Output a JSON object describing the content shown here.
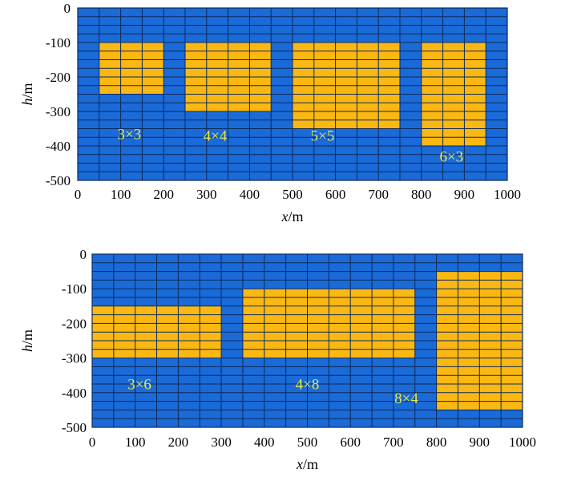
{
  "colors": {
    "background_cell": "#1a6ad8",
    "block_cell": "#fbb812",
    "grid_line": "#0c2a5a",
    "block_label": "#e8e84a"
  },
  "chart_data": [
    {
      "type": "heatmap",
      "xlabel_var": "x",
      "xlabel_unit": "/m",
      "ylabel_var": "h",
      "ylabel_unit": "/m",
      "xlim": [
        0,
        1000
      ],
      "ylim": [
        -500,
        0
      ],
      "cell_size": [
        50,
        25
      ],
      "x_ticks": [
        "0",
        "100",
        "200",
        "300",
        "400",
        "500",
        "600",
        "700",
        "800",
        "900",
        "1000"
      ],
      "y_ticks": [
        "0",
        "-100",
        "-200",
        "-300",
        "-400",
        "-500"
      ],
      "blocks": [
        {
          "label": "3×3",
          "x": [
            50,
            200
          ],
          "y": [
            -250,
            -100
          ],
          "label_at": [
            120,
            -380
          ]
        },
        {
          "label": "4×4",
          "x": [
            250,
            450
          ],
          "y": [
            -300,
            -100
          ],
          "label_at": [
            320,
            -385
          ]
        },
        {
          "label": "5×5",
          "x": [
            500,
            750
          ],
          "y": [
            -350,
            -100
          ],
          "label_at": [
            570,
            -385
          ]
        },
        {
          "label": "6×3",
          "x": [
            800,
            950
          ],
          "y": [
            -400,
            -100
          ],
          "label_at": [
            870,
            -445
          ]
        }
      ]
    },
    {
      "type": "heatmap",
      "xlabel_var": "x",
      "xlabel_unit": "/m",
      "ylabel_var": "h",
      "ylabel_unit": "/m",
      "xlim": [
        0,
        1000
      ],
      "ylim": [
        -500,
        0
      ],
      "cell_size": [
        50,
        25
      ],
      "x_ticks": [
        "0",
        "100",
        "200",
        "300",
        "400",
        "500",
        "600",
        "700",
        "800",
        "900",
        "1000"
      ],
      "y_ticks": [
        "0",
        "-100",
        "-200",
        "-300",
        "-400",
        "-500"
      ],
      "blocks": [
        {
          "label": "3×6",
          "x": [
            0,
            300
          ],
          "y": [
            -300,
            -150
          ],
          "label_at": [
            110,
            -390
          ]
        },
        {
          "label": "4×8",
          "x": [
            350,
            750
          ],
          "y": [
            -300,
            -100
          ],
          "label_at": [
            500,
            -390
          ]
        },
        {
          "label": "8×4",
          "x": [
            800,
            1000
          ],
          "y": [
            -450,
            -50
          ],
          "label_at": [
            730,
            -430
          ]
        }
      ]
    }
  ]
}
